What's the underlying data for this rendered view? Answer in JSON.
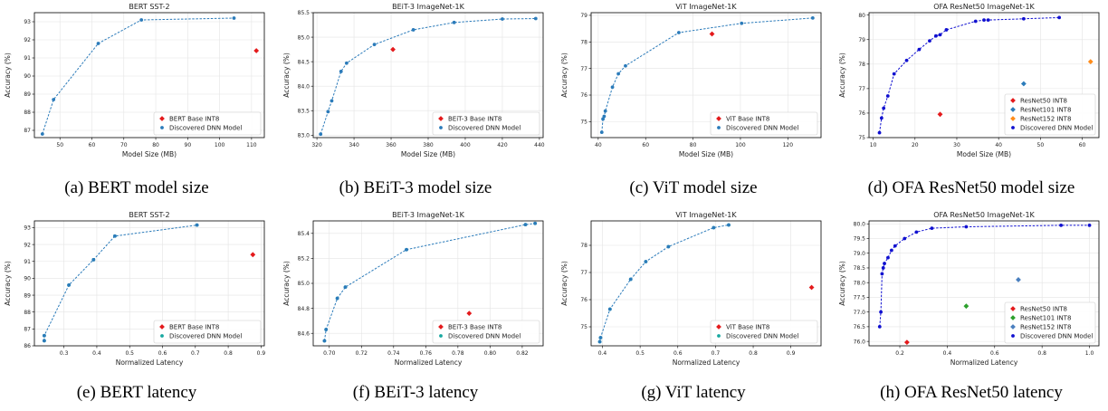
{
  "captions": [
    "(a) BERT model size",
    "(b) BEiT-3 model size",
    "(c) ViT model size",
    "(d) OFA ResNet50 model size",
    "(e) BERT latency",
    "(f) BEiT-3 latency",
    "(g) ViT latency",
    "(h) OFA ResNet50 latency"
  ],
  "chart_data": [
    {
      "type": "scatter",
      "title": "BERT SST-2",
      "xlabel": "Model Size (MB)",
      "ylabel": "Accuracy (%)",
      "xlim": [
        42,
        114
      ],
      "ylim": [
        86.6,
        93.5
      ],
      "xticks": [
        50,
        60,
        70,
        80,
        90,
        100,
        110
      ],
      "yticks": [
        87,
        88,
        89,
        90,
        91,
        92,
        93
      ],
      "xtick_labels": [
        "50",
        "60",
        "70",
        "80",
        "90",
        "100",
        "110"
      ],
      "ytick_labels": [
        "87",
        "88",
        "89",
        "90",
        "91",
        "92",
        "93"
      ],
      "grid": true,
      "legend_position": "lower-right",
      "series": [
        {
          "name": "BERT Base INT8",
          "color": "#e41a1c",
          "marker": "diamond",
          "x": [
            111.5
          ],
          "y": [
            91.4
          ]
        },
        {
          "name": "Discovered DNN Model",
          "color": "#2b7bba",
          "marker": "circle",
          "line": true,
          "x": [
            44.5,
            48.0,
            62.0,
            75.5,
            104.5
          ],
          "y": [
            86.8,
            88.7,
            91.8,
            93.1,
            93.2
          ]
        }
      ]
    },
    {
      "type": "scatter",
      "title": "BEiT-3 ImageNet-1K",
      "xlabel": "Model Size (MB)",
      "ylabel": "Accuracy (%)",
      "xlim": [
        318,
        442
      ],
      "ylim": [
        82.95,
        85.5
      ],
      "xticks": [
        320,
        340,
        360,
        380,
        400,
        420,
        440
      ],
      "yticks": [
        83.0,
        83.5,
        84.0,
        84.5,
        85.0,
        85.5
      ],
      "xtick_labels": [
        "320",
        "340",
        "360",
        "380",
        "400",
        "420",
        "440"
      ],
      "ytick_labels": [
        "83.0",
        "83.5",
        "84.0",
        "84.5",
        "85.0",
        "85.5"
      ],
      "grid": true,
      "legend_position": "lower-right",
      "series": [
        {
          "name": "BEiT-3 Base INT8",
          "color": "#e41a1c",
          "marker": "diamond",
          "x": [
            361
          ],
          "y": [
            84.75
          ]
        },
        {
          "name": "Discovered DNN Model",
          "color": "#2b7bba",
          "marker": "circle",
          "line": true,
          "x": [
            322,
            326,
            328,
            333,
            336,
            351,
            372,
            394,
            420,
            438
          ],
          "y": [
            83.02,
            83.48,
            83.7,
            84.3,
            84.47,
            84.85,
            85.15,
            85.3,
            85.37,
            85.38
          ]
        }
      ]
    },
    {
      "type": "scatter",
      "title": "ViT ImageNet-1K",
      "xlabel": "Model Size (MB)",
      "ylabel": "Accuracy (%)",
      "xlim": [
        37,
        134
      ],
      "ylim": [
        74.4,
        79.1
      ],
      "xticks": [
        40,
        60,
        80,
        100,
        120
      ],
      "yticks": [
        75,
        76,
        77,
        78,
        79
      ],
      "xtick_labels": [
        "40",
        "60",
        "80",
        "100",
        "120"
      ],
      "ytick_labels": [
        "75",
        "76",
        "77",
        "78",
        "79"
      ],
      "grid": true,
      "legend_position": "lower-right",
      "series": [
        {
          "name": "ViT Base INT8",
          "color": "#e41a1c",
          "marker": "diamond",
          "x": [
            88
          ],
          "y": [
            78.3
          ]
        },
        {
          "name": "Discovered DNN Model",
          "color": "#2b7bba",
          "marker": "circle",
          "line": true,
          "x": [
            41.5,
            42.0,
            42.5,
            43.0,
            46.0,
            48.5,
            51.5,
            74.0,
            100.5,
            130.5
          ],
          "y": [
            74.6,
            75.1,
            75.2,
            75.4,
            76.3,
            76.8,
            77.1,
            78.35,
            78.7,
            78.9
          ]
        }
      ]
    },
    {
      "type": "scatter",
      "title": "OFA ResNet50 ImageNet-1K",
      "xlabel": "Model Size (MB)",
      "ylabel": "Accuracy (%)",
      "xlim": [
        9,
        64
      ],
      "ylim": [
        75.0,
        80.1
      ],
      "xticks": [
        10,
        20,
        30,
        40,
        50,
        60
      ],
      "yticks": [
        75,
        76,
        77,
        78,
        79,
        80
      ],
      "xtick_labels": [
        "10",
        "20",
        "30",
        "40",
        "50",
        "60"
      ],
      "ytick_labels": [
        "75",
        "76",
        "77",
        "78",
        "79",
        "80"
      ],
      "grid": true,
      "legend_position": "lower-right",
      "series": [
        {
          "name": "ResNet50 INT8",
          "color": "#e41a1c",
          "marker": "diamond",
          "x": [
            26
          ],
          "y": [
            75.95
          ]
        },
        {
          "name": "ResNet101 INT8",
          "color": "#2b7bba",
          "marker": "diamond",
          "x": [
            46
          ],
          "y": [
            77.2
          ]
        },
        {
          "name": "ResNet152 INT8",
          "color": "#ff8c1a",
          "marker": "diamond",
          "x": [
            62
          ],
          "y": [
            78.1
          ]
        },
        {
          "name": "Discovered DNN Model",
          "color": "#1010d0",
          "marker": "circle",
          "line": true,
          "x": [
            11.5,
            12.0,
            12.5,
            13.5,
            15.0,
            18.0,
            21.0,
            23.5,
            25.0,
            26.0,
            27.5,
            34.5,
            36.5,
            37.5,
            46.0,
            54.5
          ],
          "y": [
            75.2,
            75.8,
            76.2,
            76.7,
            77.6,
            78.15,
            78.6,
            78.95,
            79.15,
            79.2,
            79.4,
            79.75,
            79.8,
            79.8,
            79.85,
            79.9
          ]
        }
      ]
    },
    {
      "type": "scatter",
      "title": "BERT SST-2",
      "xlabel": "Normalized Latency",
      "ylabel": "Accuracy (%)",
      "xlim": [
        0.21,
        0.91
      ],
      "ylim": [
        86.0,
        93.4
      ],
      "xticks": [
        0.2,
        0.3,
        0.4,
        0.5,
        0.6,
        0.7,
        0.8,
        0.9
      ],
      "yticks": [
        86,
        87,
        88,
        89,
        90,
        91,
        92,
        93
      ],
      "xtick_labels": [
        "0.2",
        "0.3",
        "0.4",
        "0.5",
        "0.6",
        "0.7",
        "0.8",
        "0.9"
      ],
      "ytick_labels": [
        "86",
        "87",
        "88",
        "89",
        "90",
        "91",
        "92",
        "93"
      ],
      "grid": true,
      "legend_position": "lower-right",
      "series": [
        {
          "name": "BERT Base INT8",
          "color": "#e41a1c",
          "marker": "diamond",
          "x": [
            0.875
          ],
          "y": [
            91.4
          ]
        },
        {
          "name": "Discovered DNN Model",
          "color": "#18a8a0",
          "marker": "circle",
          "line": false,
          "x": [
            0.24,
            0.24,
            0.315,
            0.39,
            0.455,
            0.705
          ],
          "y": [
            86.3,
            86.6,
            89.6,
            91.1,
            92.5,
            93.15
          ]
        },
        {
          "name": "",
          "color": "#2b7bba",
          "marker": "circle",
          "line": true,
          "x": [
            0.24,
            0.24,
            0.315,
            0.39,
            0.455,
            0.705
          ],
          "y": [
            86.3,
            86.6,
            89.6,
            91.1,
            92.5,
            93.15
          ]
        }
      ]
    },
    {
      "type": "scatter",
      "title": "BEiT-3 ImageNet-1K",
      "xlabel": "Normalized Latency",
      "ylabel": "Accuracy (%)",
      "xlim": [
        0.69,
        0.833
      ],
      "ylim": [
        84.5,
        85.5
      ],
      "xticks": [
        0.7,
        0.72,
        0.74,
        0.76,
        0.78,
        0.8,
        0.82
      ],
      "yticks": [
        84.6,
        84.8,
        85.0,
        85.2,
        85.4
      ],
      "xtick_labels": [
        "0.70",
        "0.72",
        "0.74",
        "0.76",
        "0.78",
        "0.80",
        "0.82"
      ],
      "ytick_labels": [
        "84.6",
        "84.8",
        "85.0",
        "85.2",
        "85.4"
      ],
      "grid": true,
      "legend_position": "lower-right",
      "series": [
        {
          "name": "BEiT-3 Base INT8",
          "color": "#e41a1c",
          "marker": "diamond",
          "x": [
            0.787
          ],
          "y": [
            84.76
          ]
        },
        {
          "name": "Discovered DNN Model",
          "color": "#18a8a0",
          "marker": "circle",
          "line": false,
          "x": [
            0.697,
            0.698,
            0.705,
            0.71,
            0.748,
            0.822,
            0.828
          ],
          "y": [
            84.54,
            84.63,
            84.88,
            84.97,
            85.27,
            85.47,
            85.48
          ]
        },
        {
          "name": "",
          "color": "#2b7bba",
          "marker": "circle",
          "line": true,
          "x": [
            0.697,
            0.698,
            0.705,
            0.71,
            0.748,
            0.822,
            0.828
          ],
          "y": [
            84.54,
            84.63,
            84.88,
            84.97,
            85.27,
            85.47,
            85.48
          ]
        }
      ]
    },
    {
      "type": "scatter",
      "title": "ViT ImageNet-1K",
      "xlabel": "Normalized Latency",
      "ylabel": "Accuracy (%)",
      "xlim": [
        0.37,
        0.98
      ],
      "ylim": [
        74.3,
        78.9
      ],
      "xticks": [
        0.4,
        0.5,
        0.6,
        0.7,
        0.8,
        0.9
      ],
      "yticks": [
        75,
        76,
        77,
        78
      ],
      "xtick_labels": [
        "0.4",
        "0.5",
        "0.6",
        "0.7",
        "0.8",
        "0.9"
      ],
      "ytick_labels": [
        "75",
        "76",
        "77",
        "78"
      ],
      "grid": true,
      "legend_position": "lower-right",
      "series": [
        {
          "name": "ViT Base INT8",
          "color": "#e41a1c",
          "marker": "diamond",
          "x": [
            0.955
          ],
          "y": [
            76.45
          ]
        },
        {
          "name": "Discovered DNN Model",
          "color": "#18a8a0",
          "marker": "circle",
          "line": false,
          "x": [
            0.393,
            0.395,
            0.42,
            0.475,
            0.515,
            0.575,
            0.695,
            0.735
          ],
          "y": [
            74.45,
            74.6,
            75.65,
            76.75,
            77.4,
            77.95,
            78.65,
            78.75
          ]
        },
        {
          "name": "",
          "color": "#2b7bba",
          "marker": "circle",
          "line": true,
          "x": [
            0.393,
            0.395,
            0.42,
            0.475,
            0.515,
            0.575,
            0.695,
            0.735
          ],
          "y": [
            74.45,
            74.6,
            75.65,
            76.75,
            77.4,
            77.95,
            78.65,
            78.75
          ]
        }
      ]
    },
    {
      "type": "scatter",
      "title": "OFA ResNet50 ImageNet-1K",
      "xlabel": "Normalized Latency",
      "ylabel": "Accuracy (%)",
      "xlim": [
        0.07,
        1.04
      ],
      "ylim": [
        75.85,
        80.1
      ],
      "xticks": [
        0.2,
        0.4,
        0.6,
        0.8,
        1.0
      ],
      "yticks": [
        76.0,
        76.5,
        77.0,
        77.5,
        78.0,
        78.5,
        79.0,
        79.5,
        80.0
      ],
      "xtick_labels": [
        "0.2",
        "0.4",
        "0.6",
        "0.8",
        "1.0"
      ],
      "ytick_labels": [
        "76.0",
        "76.5",
        "77.0",
        "77.5",
        "78.0",
        "78.5",
        "79.0",
        "79.5",
        "80.0"
      ],
      "grid": true,
      "legend_position": "lower-right",
      "series": [
        {
          "name": "ResNet50 INT8",
          "color": "#e41a1c",
          "marker": "diamond",
          "x": [
            0.23
          ],
          "y": [
            75.97
          ]
        },
        {
          "name": "ResNet101 INT8",
          "color": "#2ca02c",
          "marker": "diamond",
          "x": [
            0.48
          ],
          "y": [
            77.2
          ]
        },
        {
          "name": "ResNet152 INT8",
          "color": "#4a7fbf",
          "marker": "diamond",
          "x": [
            0.7
          ],
          "y": [
            78.1
          ]
        },
        {
          "name": "Discovered DNN Model",
          "color": "#1010d0",
          "marker": "circle",
          "line": true,
          "x": [
            0.115,
            0.12,
            0.125,
            0.13,
            0.135,
            0.15,
            0.165,
            0.18,
            0.22,
            0.27,
            0.335,
            0.48,
            0.88,
            1.0
          ],
          "y": [
            76.5,
            77.0,
            78.3,
            78.5,
            78.65,
            78.85,
            79.1,
            79.25,
            79.5,
            79.72,
            79.85,
            79.9,
            79.95,
            79.95
          ]
        }
      ]
    }
  ]
}
